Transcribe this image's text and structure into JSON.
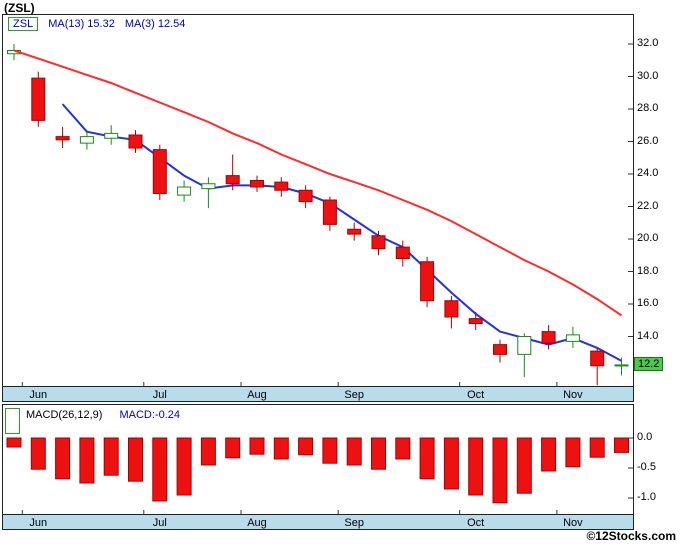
{
  "title": "(ZSL)",
  "watermark": "©12Stocks.com",
  "price_panel": {
    "legend": {
      "symbol": "ZSL",
      "ma13": "MA(13)  15.32",
      "ma3": "MA(3)  12.54"
    },
    "last_price": "12.2",
    "months": [
      "Jun",
      "Jul",
      "Aug",
      "Sep",
      "Oct",
      "Nov"
    ]
  },
  "macd_panel": {
    "label": "MACD(26,12,9)",
    "value": "MACD:-0.24",
    "months": [
      "Jun",
      "Jul",
      "Aug",
      "Sep",
      "Oct",
      "Nov"
    ]
  },
  "colors": {
    "up": "#1a8a1a",
    "down": "#ee1111",
    "down_stroke": "#aa0000",
    "ma13": "#ff2a2a",
    "ma3": "#2233dd",
    "strip": "#b9dcea",
    "border": "#222222",
    "legend_text": "#0000bb",
    "last_price_bg": "#4ec94e"
  },
  "chart_data": [
    {
      "type": "candlestick",
      "title": "ZSL weekly price, June - November",
      "symbol": "ZSL",
      "x_months": [
        "Jun",
        "Jul",
        "Aug",
        "Sep",
        "Oct",
        "Nov"
      ],
      "month_week_index": [
        1,
        6,
        10,
        14,
        19,
        23
      ],
      "y_ticks": [
        32.0,
        30.0,
        28.0,
        26.0,
        24.0,
        22.0,
        20.0,
        18.0,
        16.0,
        14.0
      ],
      "ylim": [
        11,
        33
      ],
      "last_price": 12.2,
      "candles_ohlc": [
        [
          31.4,
          32.0,
          31.0,
          31.6
        ],
        [
          29.9,
          30.3,
          26.9,
          27.3
        ],
        [
          26.3,
          26.9,
          25.6,
          26.1
        ],
        [
          25.9,
          26.6,
          25.5,
          26.3
        ],
        [
          26.2,
          27.0,
          25.8,
          26.5
        ],
        [
          26.4,
          26.7,
          25.3,
          25.6
        ],
        [
          25.5,
          25.8,
          22.4,
          22.8
        ],
        [
          22.7,
          23.6,
          22.3,
          23.2
        ],
        [
          23.1,
          23.8,
          21.9,
          23.4
        ],
        [
          23.9,
          25.2,
          23.0,
          23.4
        ],
        [
          23.6,
          23.9,
          22.9,
          23.2
        ],
        [
          23.5,
          23.8,
          22.6,
          23.0
        ],
        [
          23.0,
          23.3,
          21.9,
          22.3
        ],
        [
          22.4,
          22.6,
          20.5,
          20.9
        ],
        [
          20.6,
          21.0,
          19.9,
          20.3
        ],
        [
          20.2,
          20.5,
          19.0,
          19.4
        ],
        [
          19.5,
          19.9,
          18.3,
          18.8
        ],
        [
          18.6,
          18.9,
          15.8,
          16.2
        ],
        [
          16.2,
          16.5,
          14.5,
          15.2
        ],
        [
          15.1,
          15.5,
          14.4,
          14.8
        ],
        [
          13.5,
          13.8,
          12.4,
          12.9
        ],
        [
          12.9,
          14.2,
          11.5,
          14.0
        ],
        [
          14.3,
          14.7,
          13.2,
          13.6
        ],
        [
          13.7,
          14.6,
          13.3,
          14.1
        ],
        [
          13.1,
          13.3,
          11.0,
          12.2
        ],
        [
          12.2,
          12.7,
          11.6,
          12.25
        ]
      ],
      "series": [
        {
          "name": "MA(13)",
          "color": "red",
          "last_value": 15.32,
          "values": [
            31.6,
            31.1,
            30.6,
            30.1,
            29.6,
            29.0,
            28.4,
            27.8,
            27.2,
            26.5,
            25.9,
            25.2,
            24.6,
            24.0,
            23.5,
            23.0,
            22.4,
            21.8,
            21.1,
            20.3,
            19.5,
            18.7,
            18.0,
            17.2,
            16.3,
            15.3
          ]
        },
        {
          "name": "MA(3)",
          "color": "blue",
          "last_value": 12.54,
          "values": [
            null,
            null,
            28.3,
            26.6,
            26.3,
            26.1,
            25.0,
            23.9,
            23.1,
            23.3,
            23.3,
            23.2,
            22.8,
            22.2,
            21.2,
            20.2,
            19.5,
            18.1,
            16.7,
            15.4,
            14.3,
            13.9,
            13.5,
            13.9,
            13.3,
            12.5
          ]
        }
      ]
    },
    {
      "type": "bar",
      "title": "MACD(26,12,9) histogram",
      "y_ticks": [
        0.0,
        -0.5,
        -1.0
      ],
      "ylim": [
        -1.3,
        0.2
      ],
      "last_value": -0.24,
      "values": [
        -0.15,
        -0.52,
        -0.68,
        -0.75,
        -0.62,
        -0.72,
        -1.05,
        -0.95,
        -0.45,
        -0.33,
        -0.27,
        -0.35,
        -0.28,
        -0.42,
        -0.45,
        -0.52,
        -0.35,
        -0.68,
        -0.85,
        -0.95,
        -1.08,
        -0.92,
        -0.55,
        -0.48,
        -0.32,
        -0.24
      ]
    }
  ]
}
